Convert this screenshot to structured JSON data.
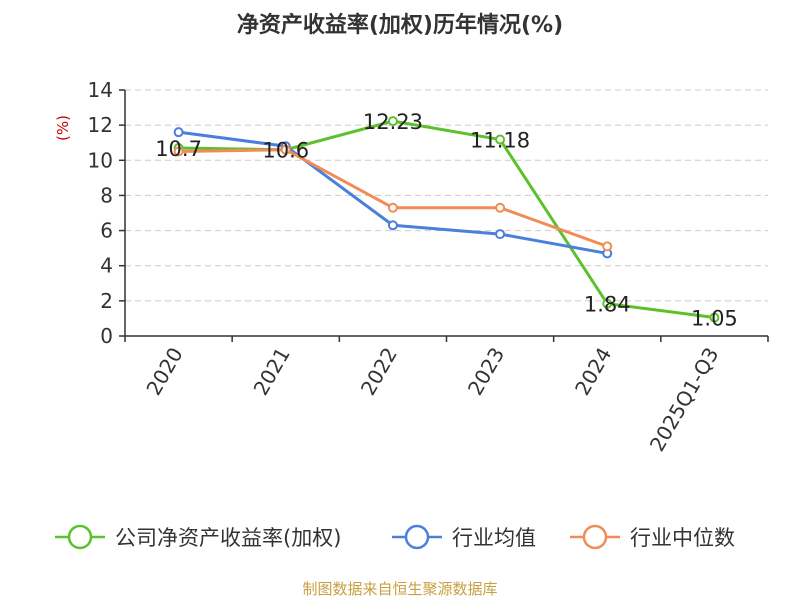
{
  "chart_data": {
    "type": "line",
    "title": "净资产收益率(加权)历年情况(%)",
    "ylabel": "(%)",
    "xlabel": "",
    "categories": [
      "2020",
      "2021",
      "2022",
      "2023",
      "2024",
      "2025Q1-Q3"
    ],
    "ylim": [
      0,
      14
    ],
    "yticks": [
      0,
      2,
      4,
      6,
      8,
      10,
      12,
      14
    ],
    "grid": true,
    "legend_position": "bottom",
    "series": [
      {
        "name": "公司净资产收益率(加权)",
        "color": "#5cc12d",
        "values": [
          10.7,
          10.6,
          12.23,
          11.18,
          1.84,
          1.05
        ],
        "labels": [
          "10.7",
          "10.6",
          "12.23",
          "11.18",
          "1.84",
          "1.05"
        ]
      },
      {
        "name": "行业均值",
        "color": "#4a7fdc",
        "values": [
          11.6,
          10.8,
          6.3,
          5.8,
          4.7,
          null
        ]
      },
      {
        "name": "行业中位数",
        "color": "#f28c56",
        "values": [
          10.5,
          10.6,
          7.3,
          7.3,
          5.1,
          null
        ]
      }
    ],
    "source": "制图数据来自恒生聚源数据库"
  }
}
